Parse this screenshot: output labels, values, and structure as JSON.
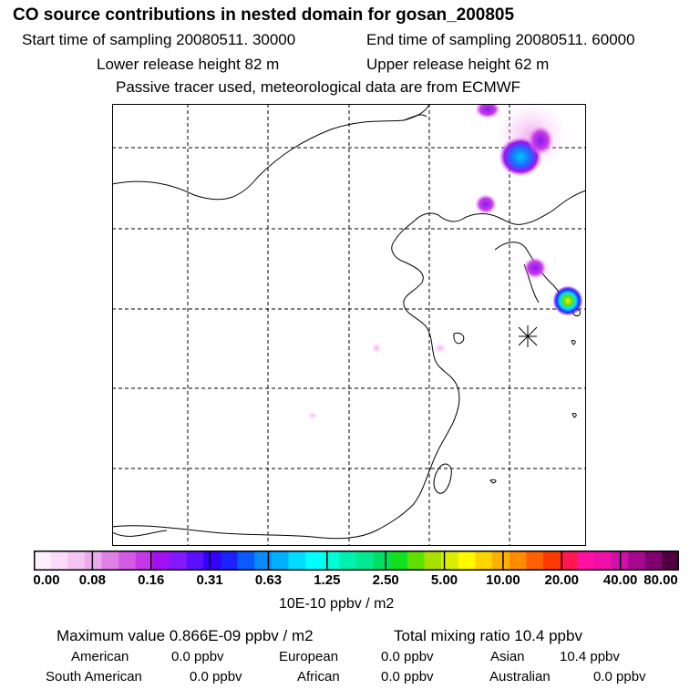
{
  "header": {
    "title": "CO  source contributions in nested domain for gosan_200805",
    "start_time": "Start time of sampling 20080511. 30000",
    "end_time": "End time of sampling 20080511. 60000",
    "lower_height": "Lower release height   82 m",
    "upper_height": "Upper release height   62 m",
    "tracer_note": "Passive tracer used, meteorological data are from ECMWF"
  },
  "colors": {
    "scale": [
      "#fff0ff",
      "#fadcfa",
      "#f4c4f4",
      "#ecaaec",
      "#df80e6",
      "#d45ae4",
      "#c438e8",
      "#a010f0",
      "#8418ff",
      "#5a10ff",
      "#3400ff",
      "#1c22ff",
      "#0a5aff",
      "#0a8cff",
      "#00b0ff",
      "#00ddff",
      "#00ffff",
      "#00ffd8",
      "#00f0b0",
      "#00e890",
      "#00e060",
      "#10e020",
      "#60e000",
      "#a8e000",
      "#d8f000",
      "#fffa00",
      "#ffd400",
      "#ffb000",
      "#ff8c00",
      "#ff6000",
      "#ff3a00",
      "#ff1850",
      "#ff10a0",
      "#f010a8",
      "#d010a8",
      "#a80890",
      "#800070",
      "#500040"
    ]
  },
  "colorbar": {
    "ticks": [
      "0.00",
      "0.08",
      "0.16",
      "0.31",
      "0.63",
      "1.25",
      "2.50",
      "5.00",
      "10.00",
      "20.00",
      "40.00",
      "80.00"
    ],
    "unit_label": "10E-10 ppbv / m2"
  },
  "stats": {
    "maximum": "Maximum value  0.866E-09 ppbv / m2",
    "total": "Total mixing ratio       10.4 ppbv",
    "regions": [
      {
        "name": "American",
        "value": "0.0 ppbv"
      },
      {
        "name": "European",
        "value": "0.0 ppbv"
      },
      {
        "name": "Asian",
        "value": "10.4 ppbv"
      },
      {
        "name": "South American",
        "value": "0.0 ppbv"
      },
      {
        "name": "African",
        "value": "0.0 ppbv"
      },
      {
        "name": "Australian",
        "value": "0.0 ppbv"
      }
    ]
  }
}
